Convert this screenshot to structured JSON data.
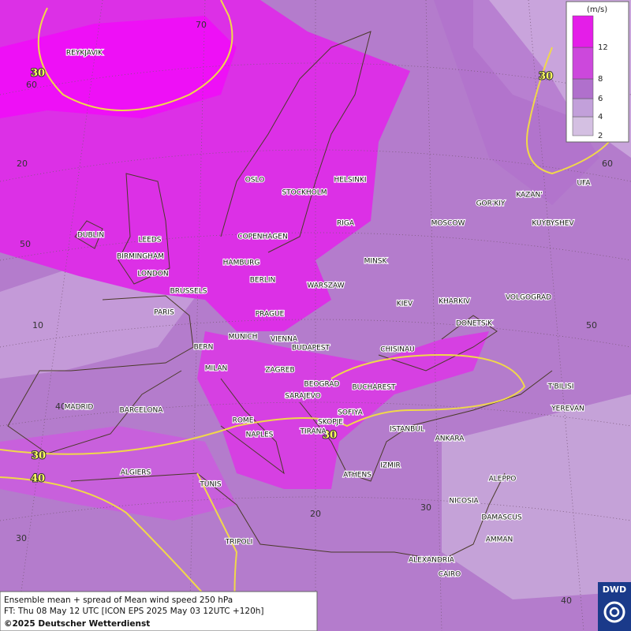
{
  "legend": {
    "unit": "(m/s)",
    "levels": [
      2,
      4,
      6,
      8,
      12
    ],
    "colors": [
      "#d4c0e2",
      "#c2a0da",
      "#b070cc",
      "#cc48dc",
      "#e41ee8"
    ]
  },
  "cities": [
    "REYKJAVIK",
    "OSLO",
    "STOCKHOLM",
    "HELSINKI",
    "DUBLIN",
    "LEEDS",
    "BIRMINGHAM",
    "LONDON",
    "COPENHAGEN",
    "RIGA",
    "HAMBURG",
    "BERLIN",
    "MINSK",
    "MOSCOW",
    "GOR'KIY",
    "KAZAN'",
    "UFA",
    "KUYBYSHEV",
    "BRUSSELS",
    "WARSZAW",
    "PARIS",
    "PRAGUE",
    "KIEV",
    "KHARKIV",
    "VOLGOGRAD",
    "DONETS'K",
    "BERN",
    "MUNICH",
    "VIENNA",
    "BUDAPEST",
    "CHISINAU",
    "MILAN",
    "ZAGREB",
    "BEOGRAD",
    "BUCHAREST",
    "T'BILISI",
    "MADRID",
    "BARCELONA",
    "SARAJEVO",
    "SOFIYA",
    "YEREVAN",
    "ROME",
    "SKOPJE",
    "ISTANBUL",
    "ANKARA",
    "NAPLES",
    "TIRANA",
    "ALGIERS",
    "ATHENS",
    "IZMIR",
    "ALEPPO",
    "TUNIS",
    "NICOSIA",
    "DAMASCUS",
    "TRIPOLI",
    "AMMAN",
    "ALEXANDRIA",
    "CAIRO"
  ],
  "isotach_labels": [
    30,
    30,
    30,
    30,
    40
  ],
  "grid_labels": [
    70,
    60,
    20,
    50,
    10,
    40,
    30,
    20,
    30,
    40,
    60,
    50
  ],
  "footer": {
    "line1": "Ensemble mean + spread of Mean wind speed 250 hPa",
    "line2": "FT: Thu 08 May 12 UTC [ICON EPS 2025 May 03 12UTC +120h]",
    "copyright": "©2025 Deutscher Wetterdienst"
  },
  "logo": "DWD"
}
